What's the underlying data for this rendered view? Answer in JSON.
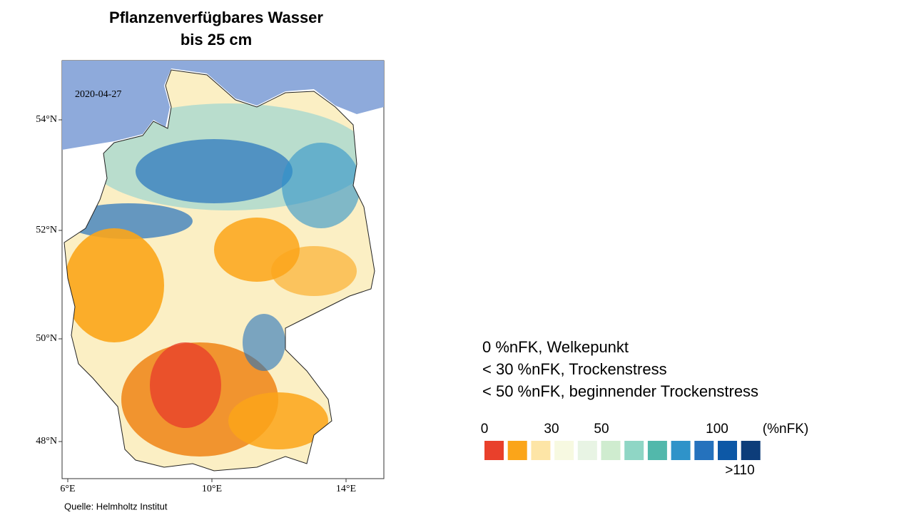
{
  "title": [
    "Pflanzenverfügbares Wasser",
    "bis 25 cm"
  ],
  "map": {
    "date": "2020-04-27",
    "lat_labels": [
      "54°N",
      "52°N",
      "50°N",
      "48°N"
    ],
    "lon_labels": [
      "6°E",
      "10°E",
      "14°E"
    ]
  },
  "source": "Quelle: Helmholtz Institut",
  "notes": [
    "0 %nFK, Welkepunkt",
    "< 30 %nFK, Trockenstress",
    "< 50 %nFK, beginnender Trockenstress"
  ],
  "legend": {
    "tick_labels": [
      "0",
      "30",
      "50",
      "100"
    ],
    "unit": "(%nFK)",
    "max_label": ">110",
    "colors": [
      "#e9402b",
      "#fba519",
      "#fde5a6",
      "#f7f9e1",
      "#e8f4e4",
      "#cfeccf",
      "#8fd6c5",
      "#52b8ab",
      "#2f93c9",
      "#2572bd",
      "#0d58a6",
      "#0d3d7a"
    ]
  }
}
